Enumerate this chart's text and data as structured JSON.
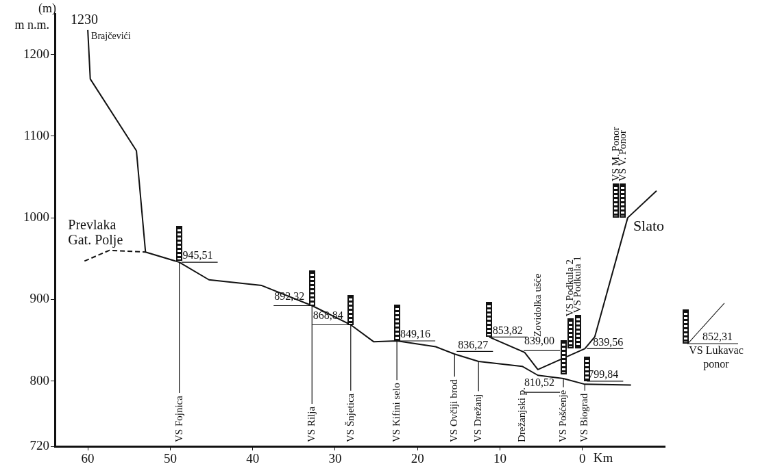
{
  "chart_data": {
    "type": "line",
    "xlabel": "Km",
    "ylabel": "(m)\nm n.m.",
    "xlim": [
      64,
      -10
    ],
    "xticks": [
      60,
      50,
      40,
      30,
      20,
      10,
      0
    ],
    "ylim": [
      720,
      1250
    ],
    "yticks": [
      720,
      800,
      900,
      1000,
      1100,
      1200
    ],
    "grid": false,
    "legend": false,
    "series": [
      {
        "color": "#111111",
        "line_style": "solid",
        "x": [
          60,
          59.7,
          54.1,
          53.0,
          48.9,
          45.3,
          38.9,
          32.8,
          28.1,
          25.3,
          22.5,
          17.8,
          15.5,
          12.6,
          7.3,
          5.4,
          2.3,
          -0.3,
          -5.9
        ],
        "values": [
          1230,
          1170,
          1082,
          958,
          945.51,
          924,
          917,
          892.32,
          868.84,
          848,
          849.16,
          842,
          833,
          824,
          818,
          807,
          803,
          796,
          795
        ]
      },
      {
        "color": "#111111",
        "line_style": "solid",
        "x": [
          11.3,
          7.0,
          5.4,
          -0.3,
          -1.5,
          -5.5,
          -9.0
        ],
        "values": [
          853.82,
          835,
          814,
          839.56,
          854,
          1000,
          1033
        ]
      },
      {
        "color": "#111111",
        "line_style": "dashed",
        "x": [
          60.4,
          57.4,
          53.0
        ],
        "values": [
          947,
          960,
          958
        ]
      }
    ],
    "annotations": [
      {
        "text": "VS Fojnica",
        "x": 48.9,
        "y": 945.51
      },
      {
        "text": "VS Rilja",
        "x": 32.8,
        "y": 892.32
      },
      {
        "text": "VS Šnjetica",
        "x": 28.1,
        "y": 868.84
      },
      {
        "text": "VS Kifini selo",
        "x": 22.5,
        "y": 849.16
      },
      {
        "text": "VS Ovčiji brod",
        "x": 15.5,
        "y": 833
      },
      {
        "text": "VS Drežanj",
        "x": 12.6,
        "y": 824
      },
      {
        "text": "Drežanjski p.",
        "x": 7.3,
        "y": 814
      },
      {
        "text": "VS Pošćenje",
        "x": 2.3,
        "y": 803
      },
      {
        "text": "VS Biograd",
        "x": -0.3,
        "y": 796
      },
      "Zovidolka ušće",
      "VS Podkula 2",
      "VS Podkula 1",
      "VS M. Ponor",
      "VS V. Ponor",
      {
        "text": "945,51",
        "x": 48.9,
        "y": 945.51
      },
      {
        "text": "892,32",
        "x": 32.8,
        "y": 892.32
      },
      {
        "text": "868,84",
        "x": 28.1,
        "y": 868.84
      },
      {
        "text": "849,16",
        "x": 22.5,
        "y": 849.16
      },
      {
        "text": "836,27",
        "x": 15.5,
        "y": 836.27
      },
      {
        "text": "853,82",
        "x": 11.3,
        "y": 853.82
      },
      "839,00",
      "810,52",
      {
        "text": "839,56",
        "x": -0.3,
        "y": 839.56
      },
      {
        "text": "799,84",
        "x": -0.3,
        "y": 799.84
      },
      {
        "text": "1230",
        "x": 60,
        "y": 1230
      },
      {
        "text": "Brajčevići",
        "x": 60,
        "y": 1230
      },
      "Prevlaka Gat. Polje",
      {
        "text": "Slato",
        "x": -5.5,
        "y": 1000
      },
      "852,31",
      "VS Lukavac ponor"
    ]
  }
}
